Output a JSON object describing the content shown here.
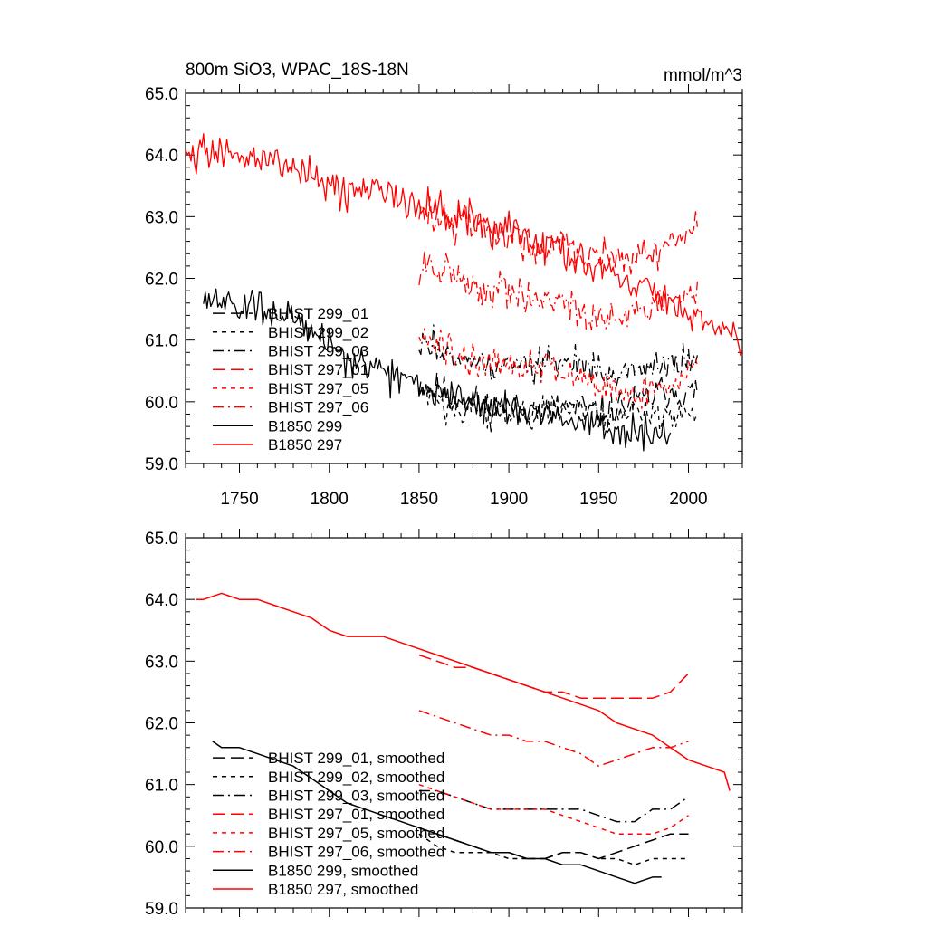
{
  "chart_data": [
    {
      "type": "line",
      "title": "800m SiO3, WPAC_18S-18N",
      "units": "mmol/m^3",
      "xlabel": "",
      "ylabel": "",
      "xlim": [
        1720,
        2030
      ],
      "ylim": [
        59.0,
        65.0
      ],
      "x_ticks": [
        1750,
        1800,
        1850,
        1900,
        1950,
        2000
      ],
      "y_ticks": [
        "59.0",
        "60.0",
        "61.0",
        "62.0",
        "63.0",
        "64.0",
        "65.0"
      ],
      "legend_position": "lower-left",
      "series": [
        {
          "name": "BHIST 299_01",
          "color": "#000000",
          "dash": "long-dash",
          "smooth": false,
          "x": [
            1850,
            1860,
            1870,
            1880,
            1890,
            1900,
            1910,
            1920,
            1930,
            1940,
            1950,
            1960,
            1970,
            1980,
            1990,
            2000,
            2005
          ],
          "y": [
            60.3,
            60.2,
            60.1,
            60.0,
            59.9,
            59.9,
            59.8,
            59.8,
            59.9,
            59.9,
            59.8,
            59.9,
            60.0,
            60.1,
            60.2,
            60.1,
            60.2
          ]
        },
        {
          "name": "BHIST 299_02",
          "color": "#000000",
          "dash": "short-dash",
          "smooth": false,
          "x": [
            1850,
            1860,
            1870,
            1880,
            1890,
            1900,
            1910,
            1920,
            1930,
            1940,
            1950,
            1960,
            1970,
            1980,
            1990,
            2000,
            2005
          ],
          "y": [
            60.2,
            60.0,
            59.9,
            59.9,
            59.9,
            59.8,
            59.8,
            59.8,
            59.9,
            59.9,
            59.8,
            59.8,
            59.8,
            59.8,
            59.8,
            59.8,
            59.9
          ]
        },
        {
          "name": "BHIST 299_03",
          "color": "#000000",
          "dash": "dash-dot",
          "smooth": false,
          "x": [
            1850,
            1860,
            1870,
            1880,
            1890,
            1900,
            1910,
            1920,
            1930,
            1940,
            1950,
            1960,
            1970,
            1980,
            1990,
            2000,
            2005
          ],
          "y": [
            60.9,
            60.9,
            60.8,
            60.7,
            60.6,
            60.6,
            60.6,
            60.6,
            60.6,
            60.6,
            60.5,
            60.4,
            60.4,
            60.6,
            60.6,
            60.7,
            60.8
          ]
        },
        {
          "name": "BHIST 297_01",
          "color": "#ff0000",
          "dash": "long-dash",
          "smooth": false,
          "x": [
            1850,
            1860,
            1870,
            1880,
            1890,
            1900,
            1910,
            1920,
            1930,
            1940,
            1950,
            1960,
            1970,
            1980,
            1990,
            2000,
            2005
          ],
          "y": [
            63.1,
            63.0,
            62.9,
            62.9,
            62.8,
            62.7,
            62.6,
            62.5,
            62.5,
            62.4,
            62.4,
            62.4,
            62.4,
            62.4,
            62.5,
            62.8,
            63.0
          ]
        },
        {
          "name": "BHIST 297_05",
          "color": "#ff0000",
          "dash": "short-dash",
          "smooth": false,
          "x": [
            1850,
            1860,
            1870,
            1880,
            1890,
            1900,
            1910,
            1920,
            1930,
            1940,
            1950,
            1960,
            1970,
            1980,
            1990,
            2000,
            2005
          ],
          "y": [
            61.0,
            60.9,
            60.8,
            60.7,
            60.6,
            60.6,
            60.6,
            60.6,
            60.5,
            60.4,
            60.3,
            60.2,
            60.2,
            60.2,
            60.3,
            60.5,
            60.6
          ]
        },
        {
          "name": "BHIST 297_06",
          "color": "#ff0000",
          "dash": "dash-dot",
          "smooth": false,
          "x": [
            1850,
            1860,
            1870,
            1880,
            1890,
            1900,
            1910,
            1920,
            1930,
            1940,
            1950,
            1960,
            1970,
            1980,
            1990,
            2000,
            2005
          ],
          "y": [
            62.2,
            62.1,
            62.0,
            61.9,
            61.8,
            61.8,
            61.7,
            61.7,
            61.6,
            61.5,
            61.3,
            61.4,
            61.5,
            61.6,
            61.6,
            61.7,
            61.8
          ]
        },
        {
          "name": "B1850 299",
          "color": "#000000",
          "dash": "solid",
          "smooth": false,
          "x": [
            1730,
            1740,
            1750,
            1760,
            1770,
            1780,
            1790,
            1800,
            1810,
            1820,
            1830,
            1840,
            1850,
            1860,
            1870,
            1880,
            1890,
            1900,
            1910,
            1920,
            1930,
            1940,
            1950,
            1960,
            1970,
            1980,
            1990
          ],
          "y": [
            61.7,
            61.6,
            61.5,
            61.5,
            61.4,
            61.3,
            61.1,
            60.9,
            60.7,
            60.6,
            60.5,
            60.4,
            60.3,
            60.2,
            60.1,
            60.0,
            59.9,
            59.9,
            59.8,
            59.8,
            59.7,
            59.7,
            59.6,
            59.5,
            59.5,
            59.5,
            59.5
          ]
        },
        {
          "name": "B1850 297",
          "color": "#ff0000",
          "dash": "solid",
          "smooth": false,
          "x": [
            1720,
            1730,
            1740,
            1750,
            1760,
            1770,
            1780,
            1790,
            1800,
            1810,
            1820,
            1830,
            1840,
            1850,
            1860,
            1870,
            1880,
            1890,
            1900,
            1910,
            1920,
            1930,
            1940,
            1950,
            1960,
            1970,
            1980,
            1990,
            2000,
            2010,
            2020,
            2030
          ],
          "y": [
            64.0,
            64.1,
            64.1,
            64.0,
            64.0,
            63.9,
            63.8,
            63.7,
            63.5,
            63.4,
            63.4,
            63.4,
            63.3,
            63.2,
            63.1,
            63.0,
            62.9,
            62.8,
            62.8,
            62.6,
            62.5,
            62.4,
            62.3,
            62.2,
            62.1,
            61.9,
            61.8,
            61.6,
            61.4,
            61.3,
            61.2,
            60.9
          ]
        }
      ]
    },
    {
      "type": "line",
      "title": "",
      "units": "",
      "xlabel": "",
      "ylabel": "",
      "xlim": [
        1720,
        2030
      ],
      "ylim": [
        59.0,
        65.0
      ],
      "x_ticks": [],
      "y_ticks": [
        "59.0",
        "60.0",
        "61.0",
        "62.0",
        "63.0",
        "64.0",
        "65.0"
      ],
      "legend_position": "lower-left",
      "series": [
        {
          "name": "BHIST 299_01, smoothed",
          "color": "#000000",
          "dash": "long-dash",
          "smooth": true,
          "x": [
            1850,
            1860,
            1870,
            1880,
            1890,
            1900,
            1910,
            1920,
            1930,
            1940,
            1950,
            1960,
            1970,
            1980,
            1990,
            2000
          ],
          "y": [
            60.3,
            60.2,
            60.1,
            60.0,
            59.9,
            59.9,
            59.8,
            59.8,
            59.9,
            59.9,
            59.8,
            59.9,
            60.0,
            60.1,
            60.2,
            60.2
          ]
        },
        {
          "name": "BHIST 299_02, smoothed",
          "color": "#000000",
          "dash": "short-dash",
          "smooth": true,
          "x": [
            1850,
            1860,
            1870,
            1880,
            1890,
            1900,
            1910,
            1920,
            1930,
            1940,
            1950,
            1960,
            1970,
            1980,
            1990,
            2000
          ],
          "y": [
            60.2,
            60.0,
            59.9,
            59.9,
            59.9,
            59.8,
            59.8,
            59.8,
            59.9,
            59.9,
            59.8,
            59.8,
            59.7,
            59.8,
            59.8,
            59.8
          ]
        },
        {
          "name": "BHIST 299_03, smoothed",
          "color": "#000000",
          "dash": "dash-dot",
          "smooth": true,
          "x": [
            1850,
            1860,
            1870,
            1880,
            1890,
            1900,
            1910,
            1920,
            1930,
            1940,
            1950,
            1960,
            1970,
            1980,
            1990,
            2000
          ],
          "y": [
            60.9,
            60.9,
            60.8,
            60.7,
            60.6,
            60.6,
            60.6,
            60.6,
            60.6,
            60.6,
            60.5,
            60.4,
            60.4,
            60.6,
            60.6,
            60.8
          ]
        },
        {
          "name": "BHIST 297_01, smoothed",
          "color": "#ff0000",
          "dash": "long-dash",
          "smooth": true,
          "x": [
            1850,
            1860,
            1870,
            1880,
            1890,
            1900,
            1910,
            1920,
            1930,
            1940,
            1950,
            1960,
            1970,
            1980,
            1990,
            2000
          ],
          "y": [
            63.1,
            63.0,
            62.9,
            62.9,
            62.8,
            62.7,
            62.6,
            62.5,
            62.5,
            62.4,
            62.4,
            62.4,
            62.4,
            62.4,
            62.5,
            62.8
          ]
        },
        {
          "name": "BHIST 297_05, smoothed",
          "color": "#ff0000",
          "dash": "short-dash",
          "smooth": true,
          "x": [
            1850,
            1860,
            1870,
            1880,
            1890,
            1900,
            1910,
            1920,
            1930,
            1940,
            1950,
            1960,
            1970,
            1980,
            1990,
            2000
          ],
          "y": [
            61.0,
            60.9,
            60.8,
            60.7,
            60.6,
            60.6,
            60.6,
            60.6,
            60.5,
            60.4,
            60.3,
            60.2,
            60.2,
            60.2,
            60.3,
            60.5
          ]
        },
        {
          "name": "BHIST 297_06, smoothed",
          "color": "#ff0000",
          "dash": "dash-dot",
          "smooth": true,
          "x": [
            1850,
            1860,
            1870,
            1880,
            1890,
            1900,
            1910,
            1920,
            1930,
            1940,
            1950,
            1960,
            1970,
            1980,
            1990,
            2000
          ],
          "y": [
            62.2,
            62.1,
            62.0,
            61.9,
            61.8,
            61.8,
            61.7,
            61.7,
            61.6,
            61.5,
            61.3,
            61.4,
            61.5,
            61.6,
            61.6,
            61.7
          ]
        },
        {
          "name": "B1850 299, smoothed",
          "color": "#000000",
          "dash": "solid",
          "smooth": true,
          "x": [
            1735,
            1740,
            1750,
            1760,
            1770,
            1780,
            1790,
            1800,
            1810,
            1820,
            1830,
            1840,
            1850,
            1860,
            1870,
            1880,
            1890,
            1900,
            1910,
            1920,
            1930,
            1940,
            1950,
            1960,
            1970,
            1980,
            1985
          ],
          "y": [
            61.7,
            61.6,
            61.6,
            61.5,
            61.4,
            61.3,
            61.1,
            60.9,
            60.7,
            60.6,
            60.5,
            60.4,
            60.3,
            60.2,
            60.1,
            60.0,
            59.9,
            59.9,
            59.8,
            59.8,
            59.7,
            59.7,
            59.6,
            59.5,
            59.4,
            59.5,
            59.5
          ]
        },
        {
          "name": "B1850 297, smoothed",
          "color": "#ff0000",
          "dash": "solid",
          "smooth": true,
          "x": [
            1726,
            1730,
            1740,
            1750,
            1760,
            1770,
            1780,
            1790,
            1800,
            1810,
            1820,
            1830,
            1840,
            1850,
            1860,
            1870,
            1880,
            1890,
            1900,
            1910,
            1920,
            1930,
            1940,
            1950,
            1960,
            1970,
            1980,
            1990,
            2000,
            2010,
            2020,
            2023
          ],
          "y": [
            64.0,
            64.0,
            64.1,
            64.0,
            64.0,
            63.9,
            63.8,
            63.7,
            63.5,
            63.4,
            63.4,
            63.4,
            63.3,
            63.2,
            63.1,
            63.0,
            62.9,
            62.8,
            62.7,
            62.6,
            62.5,
            62.4,
            62.3,
            62.2,
            62.0,
            61.9,
            61.8,
            61.6,
            61.4,
            61.3,
            61.2,
            60.9
          ]
        }
      ]
    }
  ]
}
